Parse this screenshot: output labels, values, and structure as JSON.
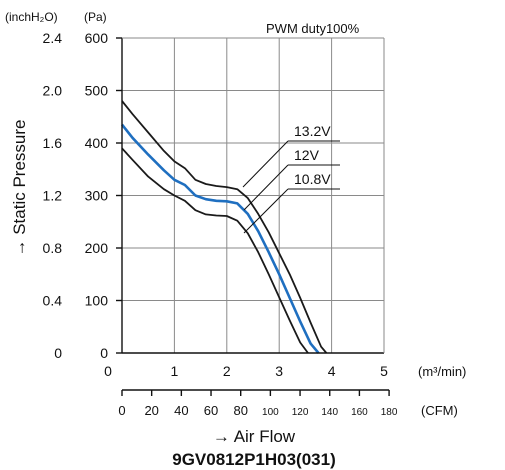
{
  "chart_data": {
    "type": "line",
    "title": "9GV0812P1H03(031)",
    "annotation": "PWM duty100%",
    "xlabel": "→ Air Flow",
    "ylabel": "→ Static Pressure",
    "x_unit": "(m³/min)",
    "x2_unit": "(CFM)",
    "y_unit": "(Pa)",
    "y2_unit": "(inchH₂O)",
    "xlim": [
      0,
      5
    ],
    "ylim": [
      0,
      600
    ],
    "x_ticks": [
      "0",
      "1",
      "2",
      "3",
      "4",
      "5"
    ],
    "x2_ticks": [
      "0",
      "20",
      "40",
      "60",
      "80",
      "100",
      "120",
      "140",
      "160",
      "180"
    ],
    "y_ticks": [
      "0",
      "100",
      "200",
      "300",
      "400",
      "500",
      "600"
    ],
    "y2_ticks": [
      "0",
      "0.4",
      "0.8",
      "1.2",
      "1.6",
      "2.0",
      "2.4"
    ],
    "grid": true,
    "series": [
      {
        "name": "13.2V",
        "color": "#1a1a1a",
        "x": [
          0,
          0.2,
          0.5,
          0.8,
          1.0,
          1.2,
          1.4,
          1.6,
          1.8,
          2.0,
          2.2,
          2.4,
          2.6,
          2.8,
          3.0,
          3.2,
          3.4,
          3.6,
          3.8,
          3.9
        ],
        "y": [
          480,
          455,
          420,
          385,
          365,
          352,
          330,
          322,
          318,
          316,
          312,
          295,
          265,
          230,
          190,
          150,
          105,
          58,
          12,
          0
        ]
      },
      {
        "name": "12V",
        "color": "#1f6fc0",
        "x": [
          0,
          0.2,
          0.5,
          0.8,
          1.0,
          1.2,
          1.4,
          1.6,
          1.8,
          2.0,
          2.2,
          2.4,
          2.6,
          2.8,
          3.0,
          3.2,
          3.4,
          3.6,
          3.75
        ],
        "y": [
          435,
          410,
          378,
          348,
          330,
          320,
          300,
          293,
          290,
          289,
          285,
          265,
          232,
          192,
          150,
          105,
          60,
          18,
          0
        ]
      },
      {
        "name": "10.8V",
        "color": "#1a1a1a",
        "x": [
          0,
          0.2,
          0.5,
          0.8,
          1.0,
          1.2,
          1.4,
          1.6,
          1.8,
          2.0,
          2.2,
          2.4,
          2.6,
          2.8,
          3.0,
          3.2,
          3.4,
          3.55
        ],
        "y": [
          390,
          368,
          336,
          312,
          300,
          290,
          272,
          264,
          262,
          261,
          252,
          228,
          192,
          150,
          106,
          62,
          20,
          0
        ]
      }
    ]
  }
}
